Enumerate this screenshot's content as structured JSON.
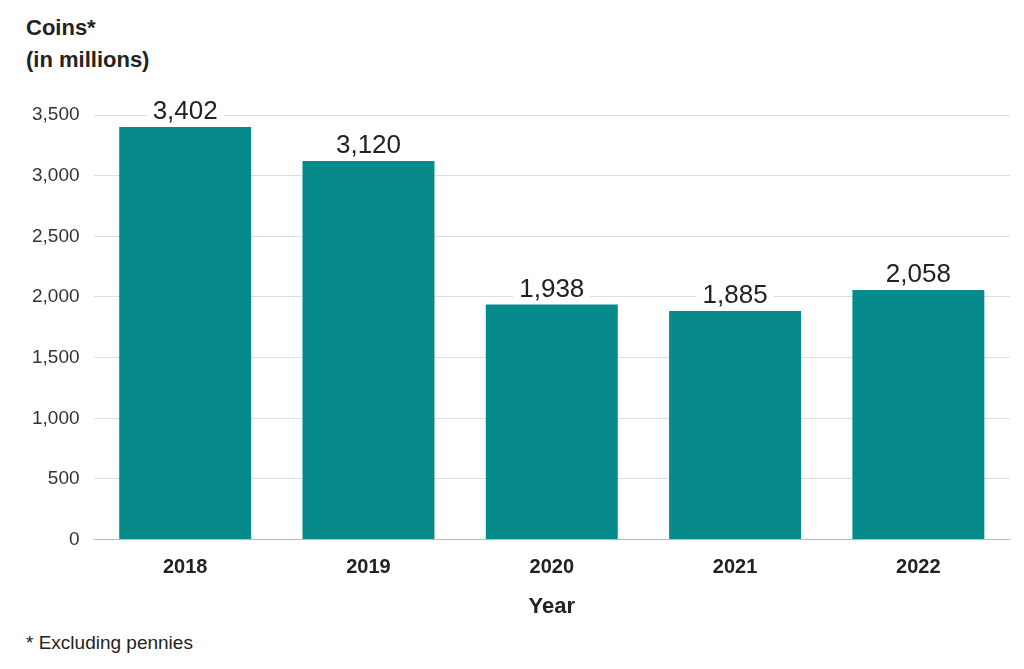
{
  "chart_data": {
    "type": "bar",
    "ylabel": [
      "Coins*",
      "(in millions)"
    ],
    "xlabel": "Year",
    "note": "* Excluding pennies",
    "categories": [
      "2018",
      "2019",
      "2020",
      "2021",
      "2022"
    ],
    "values": [
      3402,
      3120,
      1938,
      1885,
      2058
    ],
    "value_labels": [
      "3,402",
      "3,120",
      "1,938",
      "1,885",
      "2,058"
    ],
    "color": "#068a8c",
    "ylim": [
      0,
      3500
    ],
    "yticks": [
      0,
      500,
      {
        "value": 1000,
        "label": "1,000"
      },
      {
        "value": 1500,
        "label": "1,500"
      },
      {
        "value": 2000,
        "label": "2,000"
      },
      {
        "value": 2500,
        "label": "2,500"
      },
      {
        "value": 3000,
        "label": "3,000"
      },
      {
        "value": 3500,
        "label": "3,500"
      }
    ],
    "grid": true,
    "data_labels": true
  }
}
